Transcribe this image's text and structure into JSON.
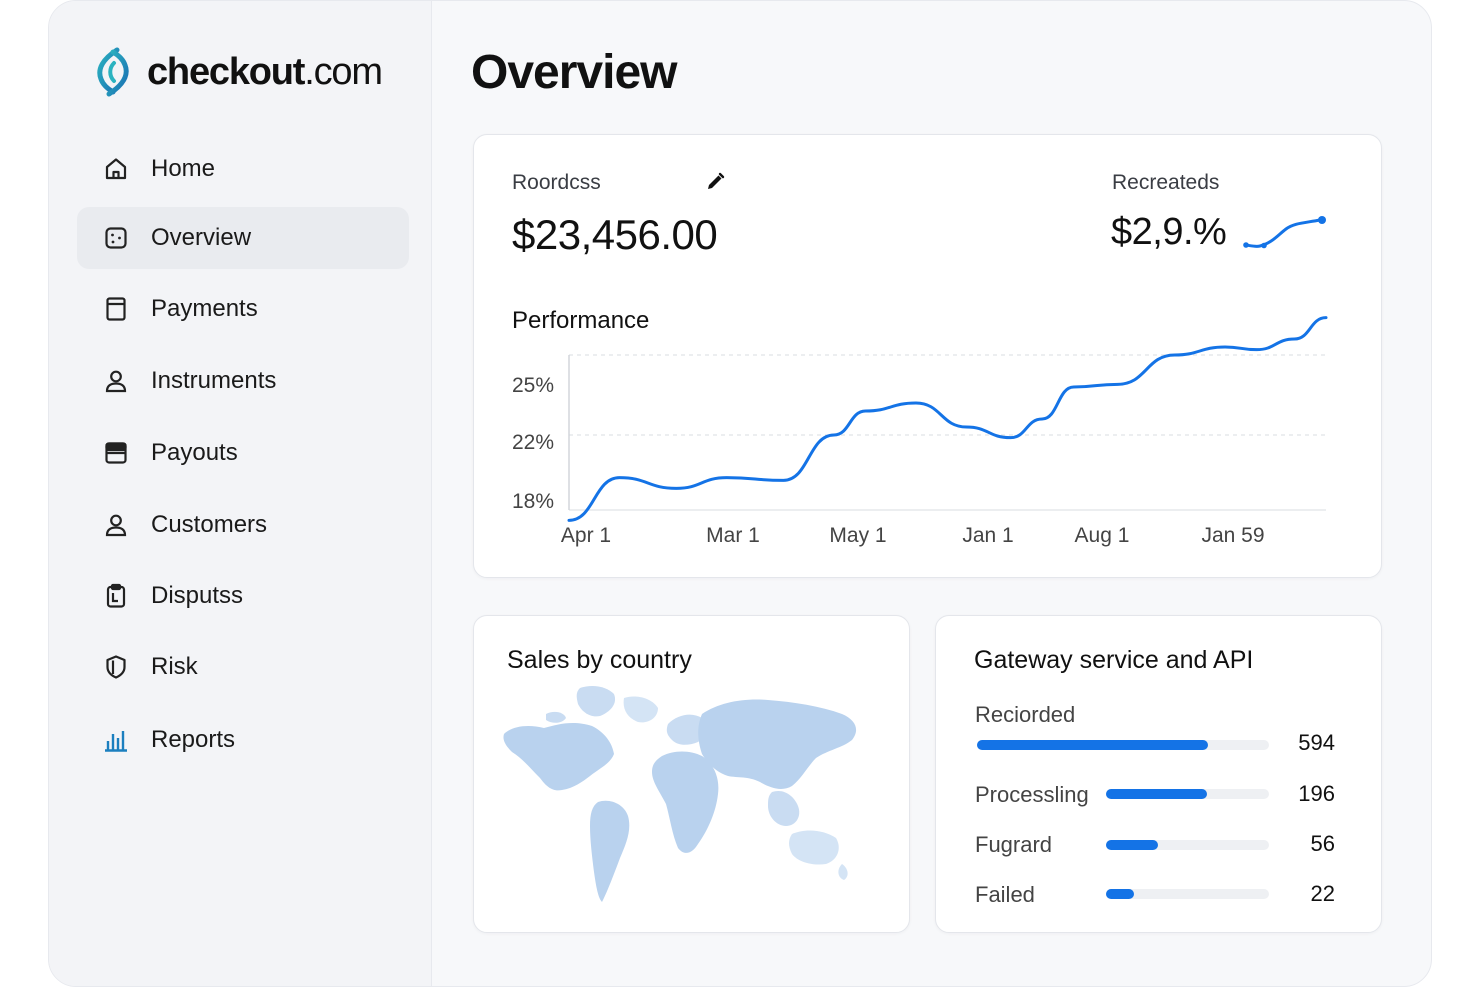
{
  "brand": {
    "name_bold": "checkout",
    "name_thin": ".com",
    "accent": "#1a9bb5"
  },
  "sidebar": {
    "items": [
      {
        "label": "Home",
        "icon": "home-icon"
      },
      {
        "label": "Overview",
        "icon": "overview-icon",
        "active": true
      },
      {
        "label": "Payments",
        "icon": "payments-icon"
      },
      {
        "label": "Instruments",
        "icon": "user-icon"
      },
      {
        "label": "Payouts",
        "icon": "payouts-icon"
      },
      {
        "label": "Customers",
        "icon": "user-icon"
      },
      {
        "label": "Disputss",
        "icon": "clipboard-icon"
      },
      {
        "label": "Risk",
        "icon": "shield-icon"
      },
      {
        "label": "Reports",
        "icon": "bar-chart-icon"
      }
    ]
  },
  "main": {
    "title": "Overview",
    "summary": {
      "metric_left": {
        "label": "Roordcss",
        "value": "$23,456.00"
      },
      "metric_right": {
        "label": "Recreateds",
        "value": "$2,9.%"
      }
    },
    "performance": {
      "title": "Performance"
    },
    "sales_by_country": {
      "title": "Sales by country"
    },
    "gateway": {
      "title": "Gateway service and API",
      "rows": [
        {
          "label": "Reciorded",
          "value": "594",
          "fraction": 0.79
        },
        {
          "label": "Processling",
          "value": "196",
          "fraction": 0.62
        },
        {
          "label": "Fugrard",
          "value": "56",
          "fraction": 0.32
        },
        {
          "label": "Failed",
          "value": "22",
          "fraction": 0.17
        }
      ]
    }
  },
  "chart_data": {
    "type": "line",
    "title": "Performance",
    "x": [
      "Apr 1",
      "Mar 1",
      "May 1",
      "Jan 1",
      "Aug 1",
      "Jan 59"
    ],
    "y_ticks": [
      "25%",
      "22%",
      "18%"
    ],
    "series": [
      {
        "color": "#1473e6",
        "points": [
          [
            0,
            18.8
          ],
          [
            0.4,
            20.4
          ],
          [
            0.85,
            20.0
          ],
          [
            1.25,
            20.4
          ],
          [
            1.7,
            20.3
          ],
          [
            2.1,
            22.0
          ],
          [
            2.35,
            22.9
          ],
          [
            2.75,
            23.2
          ],
          [
            3.15,
            22.3
          ],
          [
            3.5,
            21.9
          ],
          [
            3.75,
            22.6
          ],
          [
            4.0,
            23.8
          ],
          [
            4.35,
            23.9
          ],
          [
            4.8,
            25.0
          ],
          [
            5.2,
            25.3
          ],
          [
            5.45,
            25.2
          ],
          [
            5.75,
            25.6
          ],
          [
            6.0,
            26.4
          ]
        ]
      }
    ],
    "gridlines": "horizontal-dashed"
  }
}
